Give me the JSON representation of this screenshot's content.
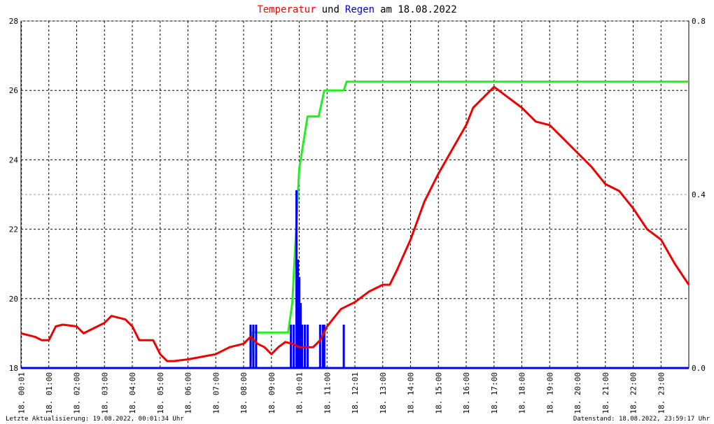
{
  "chart_data": {
    "type": "line",
    "title": [
      {
        "text": "Temperatur",
        "color": "#ff0000"
      },
      {
        "text": "und",
        "color": "#000000"
      },
      {
        "text": "Regen",
        "color": "#0000cc"
      },
      {
        "text": "am 18.08.2022",
        "color": "#000000"
      }
    ],
    "xlim": [
      0,
      24
    ],
    "xticks": [
      {
        "value": 0.0167,
        "label": "18. 00:01"
      },
      {
        "value": 1,
        "label": "18. 01:00"
      },
      {
        "value": 2,
        "label": "18. 02:00"
      },
      {
        "value": 3,
        "label": "18. 03:00"
      },
      {
        "value": 4,
        "label": "18. 04:00"
      },
      {
        "value": 5,
        "label": "18. 05:00"
      },
      {
        "value": 6,
        "label": "18. 06:00"
      },
      {
        "value": 7,
        "label": "18. 07:00"
      },
      {
        "value": 8,
        "label": "18. 08:00"
      },
      {
        "value": 9,
        "label": "18. 09:00"
      },
      {
        "value": 10,
        "label": "18. 10:01"
      },
      {
        "value": 11,
        "label": "18. 11:00"
      },
      {
        "value": 12,
        "label": "18. 12:01"
      },
      {
        "value": 13,
        "label": "18. 13:00"
      },
      {
        "value": 14,
        "label": "18. 14:00"
      },
      {
        "value": 15,
        "label": "18. 15:00"
      },
      {
        "value": 16,
        "label": "18. 16:00"
      },
      {
        "value": 17,
        "label": "18. 17:00"
      },
      {
        "value": 18,
        "label": "18. 18:00"
      },
      {
        "value": 19,
        "label": "18. 19:00"
      },
      {
        "value": 20,
        "label": "18. 20:00"
      },
      {
        "value": 21,
        "label": "18. 21:00"
      },
      {
        "value": 22,
        "label": "18. 22:00"
      },
      {
        "value": 23,
        "label": "18. 23:00"
      }
    ],
    "ylim": [
      18,
      28
    ],
    "yticks": [
      18,
      20,
      22,
      24,
      26,
      28
    ],
    "y2lim": [
      0,
      0.8
    ],
    "y2ticks": [
      {
        "value": 0,
        "label": "0.0"
      },
      0.4,
      0.8
    ],
    "grid": true,
    "series": [
      {
        "name": "Temperatur",
        "color": "#ee0000",
        "style": "line",
        "x": [
          0,
          0.5,
          0.75,
          1,
          1.25,
          1.5,
          2,
          2.25,
          2.5,
          3,
          3.25,
          3.75,
          4,
          4.25,
          4.75,
          5,
          5.25,
          5.5,
          6,
          7,
          7.5,
          8,
          8.25,
          8.5,
          8.75,
          9,
          9.25,
          9.5,
          9.75,
          10,
          10.5,
          10.75,
          11,
          11.5,
          12,
          12.5,
          13,
          13.25,
          13.5,
          14,
          14.5,
          15,
          15.5,
          16,
          16.25,
          16.5,
          17,
          17.5,
          18,
          18.5,
          19,
          19.25,
          19.5,
          20,
          20.5,
          21,
          21.5,
          22,
          22.5,
          23,
          23.5,
          24
        ],
        "values": [
          19.0,
          18.9,
          18.8,
          18.8,
          19.2,
          19.25,
          19.2,
          19.0,
          19.1,
          19.3,
          19.5,
          19.4,
          19.2,
          18.8,
          18.8,
          18.4,
          18.2,
          18.2,
          18.25,
          18.4,
          18.6,
          18.7,
          18.9,
          18.7,
          18.6,
          18.4,
          18.6,
          18.75,
          18.7,
          18.6,
          18.6,
          18.8,
          19.2,
          19.7,
          19.9,
          20.2,
          20.4,
          20.4,
          20.8,
          21.7,
          22.8,
          23.6,
          24.3,
          25.0,
          25.5,
          25.7,
          26.1,
          25.8,
          25.5,
          25.1,
          25.0,
          24.8,
          24.6,
          24.2,
          23.8,
          23.3,
          23.1,
          22.6,
          22.0,
          21.7,
          21.0,
          20.4
        ]
      },
      {
        "color": "#22ee22",
        "style": "line",
        "axis": "y2",
        "x": [
          0,
          8.25,
          8.3,
          9.6,
          9.75,
          10.0,
          10.3,
          10.7,
          10.9,
          11.6,
          11.7,
          24
        ],
        "values": [
          0,
          0,
          0.082,
          0.082,
          0.15,
          0.46,
          0.58,
          0.58,
          0.64,
          0.64,
          0.66,
          0.66
        ]
      },
      {
        "name": "Regen",
        "color": "#0000ee",
        "style": "bar",
        "axis": "y2",
        "x": [
          8.25,
          8.35,
          8.45,
          9.7,
          9.8,
          9.9,
          9.95,
          10.0,
          10.05,
          10.1,
          10.2,
          10.3,
          10.75,
          10.85,
          10.9,
          11.6
        ],
        "values": [
          0.1,
          0.1,
          0.1,
          0.1,
          0.1,
          0.41,
          0.25,
          0.21,
          0.15,
          0.1,
          0.1,
          0.1,
          0.1,
          0.1,
          0.1,
          0.1
        ]
      }
    ],
    "footer_left": "Letzte Aktualisierung: 19.08.2022, 00:01:34 Uhr",
    "footer_right": "Datenstand: 18.08.2022, 23:59:17 Uhr"
  }
}
